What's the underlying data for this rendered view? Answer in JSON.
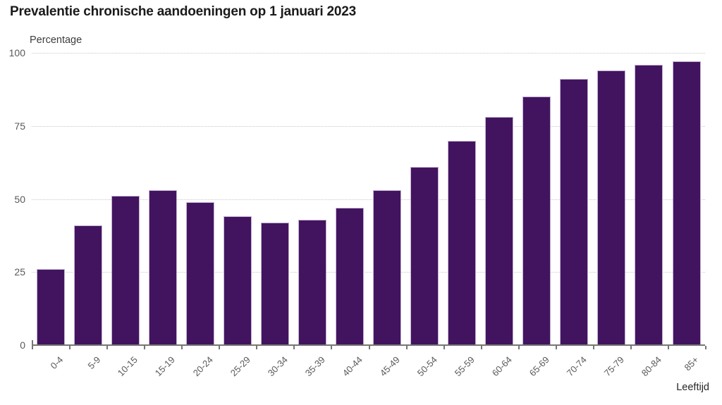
{
  "chart_data": {
    "type": "bar",
    "title": "Prevalentie chronische aandoeningen op 1 januari 2023",
    "ylabel": "Percentage",
    "xlabel": "Leeftijd",
    "ylim": [
      0,
      100
    ],
    "yticks": [
      0,
      25,
      50,
      75,
      100
    ],
    "grid": "horizontal-dotted",
    "legend": "none",
    "categories": [
      "0-4",
      "5-9",
      "10-15",
      "15-19",
      "20-24",
      "25-29",
      "30-34",
      "35-39",
      "40-44",
      "45-49",
      "50-54",
      "55-59",
      "60-64",
      "65-69",
      "70-74",
      "75-79",
      "80-84",
      "85+"
    ],
    "values": [
      26,
      41,
      51,
      53,
      49,
      44,
      42,
      43,
      47,
      53,
      61,
      70,
      78,
      85,
      91,
      94,
      96,
      97
    ],
    "colors": {
      "bar": "#42145f",
      "bar_border": "#c3b2d2",
      "gridline": "#c9c9c9",
      "axis": "#767676",
      "tick_label": "#595959",
      "title": "#1a1a1a",
      "axis_title": "#3c3c3c"
    }
  }
}
